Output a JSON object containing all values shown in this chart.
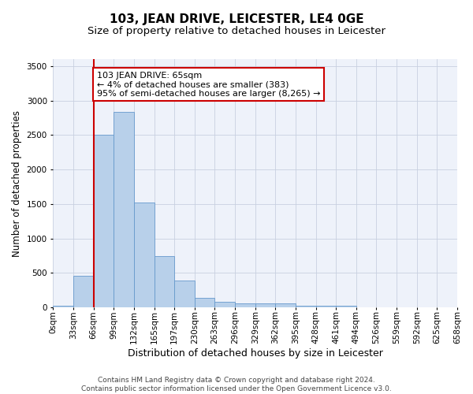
{
  "title": "103, JEAN DRIVE, LEICESTER, LE4 0GE",
  "subtitle": "Size of property relative to detached houses in Leicester",
  "xlabel": "Distribution of detached houses by size in Leicester",
  "ylabel": "Number of detached properties",
  "footer_line1": "Contains HM Land Registry data © Crown copyright and database right 2024.",
  "footer_line2": "Contains public sector information licensed under the Open Government Licence v3.0.",
  "bin_labels": [
    "0sqm",
    "33sqm",
    "66sqm",
    "99sqm",
    "132sqm",
    "165sqm",
    "197sqm",
    "230sqm",
    "263sqm",
    "296sqm",
    "329sqm",
    "362sqm",
    "395sqm",
    "428sqm",
    "461sqm",
    "494sqm",
    "526sqm",
    "559sqm",
    "592sqm",
    "625sqm",
    "658sqm"
  ],
  "bar_values": [
    20,
    460,
    2500,
    2830,
    1520,
    740,
    390,
    140,
    80,
    55,
    55,
    55,
    30,
    30,
    20,
    0,
    0,
    0,
    0,
    0
  ],
  "bar_color": "#b8d0ea",
  "bar_edge_color": "#6699cc",
  "background_color": "#eef2fa",
  "grid_color": "#c8d0e0",
  "red_line_x": 66,
  "annotation_text": "103 JEAN DRIVE: 65sqm\n← 4% of detached houses are smaller (383)\n95% of semi-detached houses are larger (8,265) →",
  "annotation_box_color": "#ffffff",
  "annotation_border_color": "#cc0000",
  "ylim": [
    0,
    3600
  ],
  "bin_width": 33,
  "num_bins": 20,
  "title_fontsize": 11,
  "subtitle_fontsize": 9.5,
  "ylabel_fontsize": 8.5,
  "xlabel_fontsize": 9,
  "tick_fontsize": 7.5,
  "annotation_fontsize": 8,
  "footer_fontsize": 6.5
}
